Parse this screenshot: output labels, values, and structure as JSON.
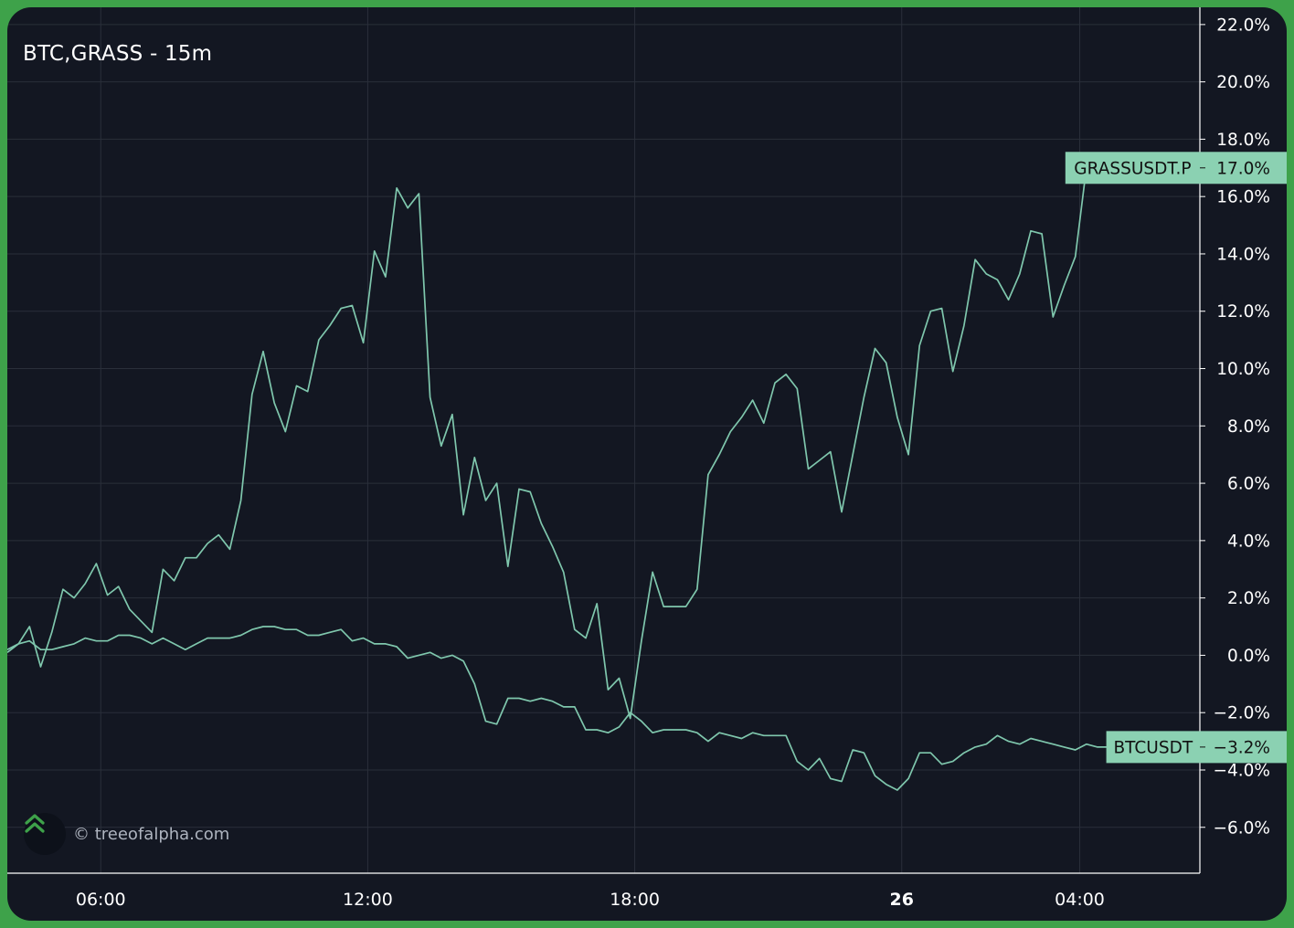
{
  "title": "BTC,GRASS - 15m",
  "watermark": "© treeofalpha.com",
  "colors": {
    "background": "#131722",
    "grid": "#2a2f3a",
    "line": "#7fc7ad",
    "label_bg": "#8bd1b2",
    "label_text": "#111111",
    "axis_text": "#ffffff",
    "frame": "#3ea24a"
  },
  "chart_data": {
    "type": "line",
    "title": "BTC,GRASS - 15m",
    "y_unit": "%",
    "ylim": [
      -7.6,
      22.6
    ],
    "y_ticks": [
      "22.0%",
      "20.0%",
      "18.0%",
      "16.0%",
      "14.0%",
      "12.0%",
      "10.0%",
      "8.0%",
      "6.0%",
      "4.0%",
      "2.0%",
      "0.0%",
      "−2.0%",
      "−4.0%",
      "−6.0%"
    ],
    "y_tick_values": [
      22,
      20,
      18,
      16,
      14,
      12,
      10,
      8,
      6,
      4,
      2,
      0,
      -2,
      -4,
      -6
    ],
    "x_unit": "hour",
    "xlim": [
      3.9,
      30.7
    ],
    "x_ticks": [
      {
        "label": "06:00",
        "value": 6,
        "bold": false
      },
      {
        "label": "12:00",
        "value": 12,
        "bold": false
      },
      {
        "label": "18:00",
        "value": 18,
        "bold": false
      },
      {
        "label": "26",
        "value": 24,
        "bold": true
      },
      {
        "label": "04:00",
        "value": 28,
        "bold": false
      }
    ],
    "grid": true,
    "series": [
      {
        "name": "GRASSUSDT.P",
        "last_label": "17.0%",
        "x": [
          3.9,
          4.15,
          4.4,
          4.65,
          4.9,
          5.15,
          5.4,
          5.65,
          5.9,
          6.15,
          6.4,
          6.65,
          6.9,
          7.15,
          7.4,
          7.65,
          7.9,
          8.15,
          8.4,
          8.65,
          8.9,
          9.15,
          9.4,
          9.65,
          9.9,
          10.15,
          10.4,
          10.65,
          10.9,
          11.15,
          11.4,
          11.65,
          11.9,
          12.15,
          12.4,
          12.65,
          12.9,
          13.15,
          13.4,
          13.65,
          13.9,
          14.15,
          14.4,
          14.65,
          14.9,
          15.15,
          15.4,
          15.65,
          15.9,
          16.15,
          16.4,
          16.65,
          16.9,
          17.15,
          17.4,
          17.65,
          17.9,
          18.15,
          18.4,
          18.65,
          18.9,
          19.15,
          19.4,
          19.65,
          19.9,
          20.15,
          20.4,
          20.65,
          20.9,
          21.15,
          21.4,
          21.65,
          21.9,
          22.15,
          22.4,
          22.65,
          22.9,
          23.15,
          23.4,
          23.65,
          23.9,
          24.15,
          24.4,
          24.65,
          24.9,
          25.15,
          25.4,
          25.65,
          25.9,
          26.15,
          26.4,
          26.65,
          26.9,
          27.15,
          27.4,
          27.65,
          27.9,
          28.15
        ],
        "y": [
          0.1,
          0.4,
          1.0,
          -0.4,
          0.8,
          2.3,
          2.0,
          2.5,
          3.2,
          2.1,
          2.4,
          1.6,
          1.2,
          0.8,
          3.0,
          2.6,
          3.4,
          3.4,
          3.9,
          4.2,
          3.7,
          5.4,
          9.1,
          10.6,
          8.8,
          7.8,
          9.4,
          9.2,
          11.0,
          11.5,
          12.1,
          12.2,
          10.9,
          14.1,
          13.2,
          16.3,
          15.6,
          16.1,
          9.0,
          7.3,
          8.4,
          4.9,
          6.9,
          5.4,
          6.0,
          3.1,
          5.8,
          5.7,
          4.6,
          3.8,
          2.9,
          0.9,
          0.6,
          1.8,
          -1.2,
          -0.8,
          -2.2,
          0.5,
          2.9,
          1.7,
          1.7,
          1.7,
          2.3,
          6.3,
          7.0,
          7.8,
          8.3,
          8.9,
          8.1,
          9.5,
          9.8,
          9.3,
          6.5,
          6.8,
          7.1,
          5.0,
          7.0,
          9.0,
          10.7,
          10.2,
          8.3,
          7.0,
          10.8,
          12.0,
          12.1,
          9.9,
          11.5,
          13.8,
          13.3,
          13.1,
          12.4,
          13.3,
          14.8,
          14.7,
          11.8,
          12.9,
          13.9,
          17.0
        ]
      },
      {
        "name": "BTCUSDT",
        "last_label": "−3.2%",
        "x": [
          3.9,
          4.15,
          4.4,
          4.65,
          4.9,
          5.15,
          5.4,
          5.65,
          5.9,
          6.15,
          6.4,
          6.65,
          6.9,
          7.15,
          7.4,
          7.65,
          7.9,
          8.15,
          8.4,
          8.65,
          8.9,
          9.15,
          9.4,
          9.65,
          9.9,
          10.15,
          10.4,
          10.65,
          10.9,
          11.15,
          11.4,
          11.65,
          11.9,
          12.15,
          12.4,
          12.65,
          12.9,
          13.15,
          13.4,
          13.65,
          13.9,
          14.15,
          14.4,
          14.65,
          14.9,
          15.15,
          15.4,
          15.65,
          15.9,
          16.15,
          16.4,
          16.65,
          16.9,
          17.15,
          17.4,
          17.65,
          17.9,
          18.15,
          18.4,
          18.65,
          18.9,
          19.15,
          19.4,
          19.65,
          19.9,
          20.15,
          20.4,
          20.65,
          20.9,
          21.15,
          21.4,
          21.65,
          21.9,
          22.15,
          22.4,
          22.65,
          22.9,
          23.15,
          23.4,
          23.65,
          23.9,
          24.15,
          24.4,
          24.65,
          24.9,
          25.15,
          25.4,
          25.65,
          25.9,
          26.15,
          26.4,
          26.65,
          26.9,
          27.15,
          27.4,
          27.65,
          27.9,
          28.15,
          28.4,
          28.65
        ],
        "y": [
          0.2,
          0.4,
          0.5,
          0.2,
          0.2,
          0.3,
          0.4,
          0.6,
          0.5,
          0.5,
          0.7,
          0.7,
          0.6,
          0.4,
          0.6,
          0.4,
          0.2,
          0.4,
          0.6,
          0.6,
          0.6,
          0.7,
          0.9,
          1.0,
          1.0,
          0.9,
          0.9,
          0.7,
          0.7,
          0.8,
          0.9,
          0.5,
          0.6,
          0.4,
          0.4,
          0.3,
          -0.1,
          0.0,
          0.1,
          -0.1,
          0.0,
          -0.2,
          -1.0,
          -2.3,
          -2.4,
          -1.5,
          -1.5,
          -1.6,
          -1.5,
          -1.6,
          -1.8,
          -1.8,
          -2.6,
          -2.6,
          -2.7,
          -2.5,
          -2.0,
          -2.3,
          -2.7,
          -2.6,
          -2.6,
          -2.6,
          -2.7,
          -3.0,
          -2.7,
          -2.8,
          -2.9,
          -2.7,
          -2.8,
          -2.8,
          -2.8,
          -3.7,
          -4.0,
          -3.6,
          -4.3,
          -4.4,
          -3.3,
          -3.4,
          -4.2,
          -4.5,
          -4.7,
          -4.3,
          -3.4,
          -3.4,
          -3.8,
          -3.7,
          -3.4,
          -3.2,
          -3.1,
          -2.8,
          -3.0,
          -3.1,
          -2.9,
          -3.0,
          -3.1,
          -3.2,
          -3.3,
          -3.1,
          -3.2,
          -3.2
        ]
      }
    ]
  }
}
